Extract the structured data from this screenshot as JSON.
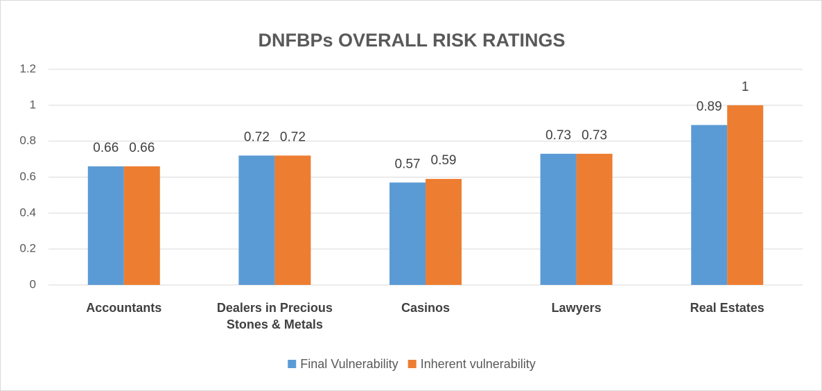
{
  "chart_data": {
    "type": "bar",
    "title": "DNFBPs OVERALL RISK RATINGS",
    "categories": [
      "Accountants",
      "Dealers in Precious Stones & Metals",
      "Casinos",
      "Lawyers",
      "Real Estates"
    ],
    "series": [
      {
        "name": "Final Vulnerability",
        "color": "#5b9bd5",
        "values": [
          0.66,
          0.72,
          0.57,
          0.73,
          0.89
        ]
      },
      {
        "name": "Inherent vulnerability",
        "color": "#ed7d31",
        "values": [
          0.66,
          0.72,
          0.59,
          0.73,
          1
        ]
      }
    ],
    "ylim": [
      0,
      1.2
    ],
    "yticks": [
      0,
      0.2,
      0.4,
      0.6,
      0.8,
      1,
      1.2
    ],
    "grid": true,
    "legend": "bottom"
  }
}
